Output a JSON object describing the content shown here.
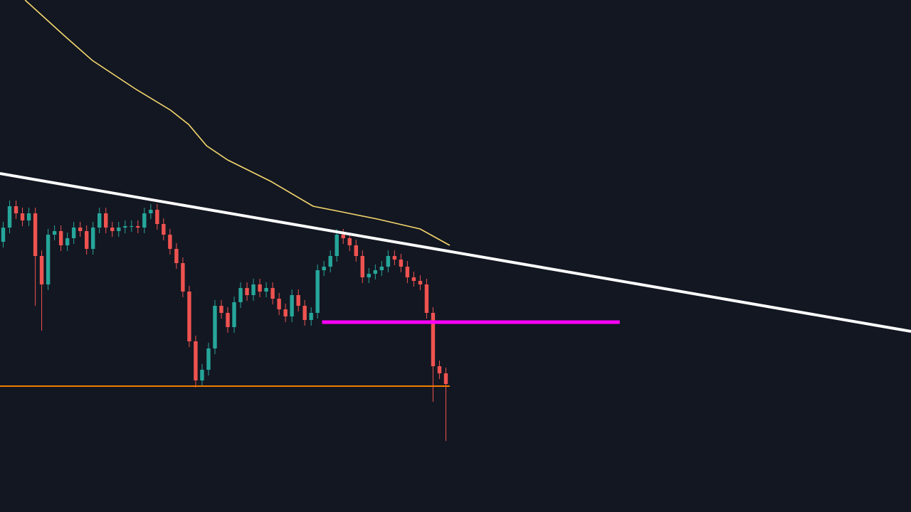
{
  "chart_data": {
    "type": "candlestick",
    "up_color": "#26a69a",
    "down_color": "#ef5350",
    "background": "#131722",
    "xlim": [
      -0.5,
      141.5
    ],
    "ylim": [
      0,
      720
    ],
    "open": [
      380,
      400,
      430,
      420,
      410,
      420,
      360,
      320,
      390,
      395,
      375,
      385,
      400,
      395,
      370,
      400,
      420,
      400,
      395,
      400,
      402,
      402,
      400,
      420,
      425,
      405,
      390,
      370,
      350,
      310,
      240,
      185,
      200,
      230,
      290,
      280,
      260,
      295,
      315,
      305,
      320,
      310,
      315,
      300,
      285,
      275,
      305,
      290,
      270,
      280,
      340,
      345,
      360,
      390,
      385,
      375,
      360,
      330,
      335,
      340,
      345,
      360,
      355,
      345,
      330,
      325,
      320,
      280,
      205,
      195
    ],
    "high": [
      408,
      438,
      438,
      428,
      428,
      428,
      368,
      398,
      403,
      403,
      393,
      408,
      408,
      403,
      408,
      428,
      428,
      408,
      408,
      410,
      410,
      410,
      428,
      433,
      433,
      413,
      398,
      378,
      358,
      318,
      248,
      208,
      238,
      298,
      298,
      288,
      303,
      323,
      323,
      328,
      328,
      323,
      323,
      308,
      293,
      313,
      313,
      298,
      288,
      348,
      353,
      368,
      398,
      398,
      393,
      383,
      368,
      343,
      348,
      353,
      368,
      368,
      363,
      353,
      338,
      333,
      328,
      288,
      213,
      203
    ],
    "low": [
      372,
      392,
      412,
      402,
      402,
      290,
      255,
      312,
      382,
      367,
      367,
      377,
      387,
      362,
      362,
      392,
      392,
      387,
      387,
      392,
      394,
      392,
      392,
      412,
      397,
      382,
      362,
      342,
      302,
      232,
      175,
      177,
      192,
      222,
      272,
      252,
      252,
      287,
      297,
      297,
      302,
      302,
      292,
      277,
      267,
      267,
      282,
      262,
      262,
      272,
      332,
      337,
      352,
      377,
      367,
      352,
      322,
      322,
      327,
      332,
      337,
      347,
      337,
      322,
      317,
      312,
      272,
      155,
      187,
      100
    ],
    "close": [
      400,
      430,
      420,
      410,
      420,
      360,
      320,
      390,
      395,
      375,
      385,
      400,
      395,
      370,
      400,
      420,
      400,
      395,
      400,
      402,
      402,
      400,
      420,
      425,
      405,
      390,
      370,
      350,
      310,
      240,
      185,
      200,
      230,
      290,
      280,
      260,
      295,
      315,
      305,
      320,
      310,
      315,
      300,
      285,
      275,
      305,
      290,
      270,
      280,
      340,
      345,
      360,
      390,
      385,
      375,
      360,
      330,
      335,
      340,
      345,
      360,
      355,
      345,
      330,
      325,
      320,
      280,
      205,
      195,
      180
    ],
    "lines": [
      {
        "color": "#f5d76e",
        "width": 1.6,
        "x": [
          3.4,
          9.5,
          13.9,
          20.6,
          26.1,
          28.9,
          31.7,
          35.0,
          41.7,
          48.3,
          52.8,
          58.3,
          65.0,
          69.6
        ],
        "values": [
          720,
          670,
          635,
          595,
          565,
          545,
          515,
          495,
          465,
          430,
          422,
          412,
          398,
          375
        ]
      },
      {
        "color": "#ffffff",
        "width": 4,
        "x": [
          -0.5,
          141.5
        ],
        "values": [
          476,
          254
        ]
      },
      {
        "color": "#ff00ff",
        "width": 5,
        "x": [
          49.7,
          96.1
        ],
        "values": [
          267,
          267
        ]
      },
      {
        "color": "#f57c00",
        "width": 2,
        "x": [
          -0.5,
          69.6
        ],
        "values": [
          177,
          177
        ]
      }
    ]
  }
}
